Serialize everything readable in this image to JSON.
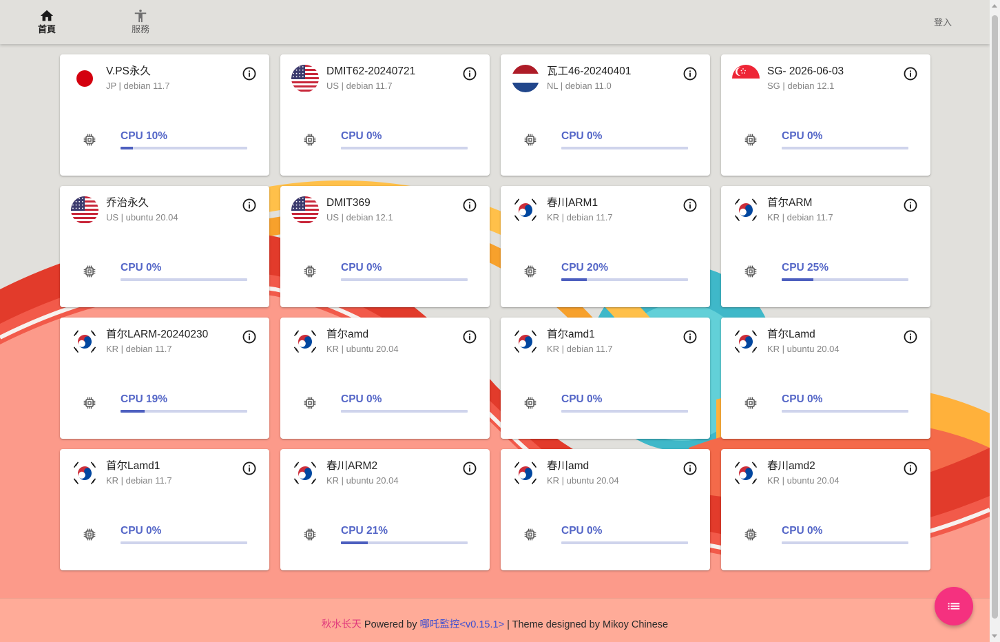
{
  "nav": {
    "home_label": "首頁",
    "services_label": "服務",
    "login_label": "登入"
  },
  "servers": [
    {
      "name": "V.PS永久",
      "country": "JP",
      "os": "debian 11.7",
      "flag": "jp-flag-icon",
      "cpu": 10
    },
    {
      "name": "DMIT62-20240721",
      "country": "US",
      "os": "debian 11.7",
      "flag": "us-flag-icon",
      "cpu": 0
    },
    {
      "name": "瓦工46-20240401",
      "country": "NL",
      "os": "debian 11.0",
      "flag": "nl-flag-icon",
      "cpu": 0
    },
    {
      "name": "SG- 2026-06-03",
      "country": "SG",
      "os": "debian 12.1",
      "flag": "sg-flag-icon",
      "cpu": 0
    },
    {
      "name": "乔治永久",
      "country": "US",
      "os": "ubuntu 20.04",
      "flag": "us-flag-icon",
      "cpu": 0
    },
    {
      "name": "DMIT369",
      "country": "US",
      "os": "debian 12.1",
      "flag": "us-flag-icon",
      "cpu": 0
    },
    {
      "name": "春川ARM1",
      "country": "KR",
      "os": "debian 11.7",
      "flag": "kr-flag-icon",
      "cpu": 20
    },
    {
      "name": "首尔ARM",
      "country": "KR",
      "os": "debian 11.7",
      "flag": "kr-flag-icon",
      "cpu": 25
    },
    {
      "name": "首尔LARM-20240230",
      "country": "KR",
      "os": "debian 11.7",
      "flag": "kr-flag-icon",
      "cpu": 19
    },
    {
      "name": "首尔amd",
      "country": "KR",
      "os": "ubuntu 20.04",
      "flag": "kr-flag-icon",
      "cpu": 0
    },
    {
      "name": "首尔amd1",
      "country": "KR",
      "os": "debian 11.7",
      "flag": "kr-flag-icon",
      "cpu": 0
    },
    {
      "name": "首尔Lamd",
      "country": "KR",
      "os": "ubuntu 20.04",
      "flag": "kr-flag-icon",
      "cpu": 0
    },
    {
      "name": "首尔Lamd1",
      "country": "KR",
      "os": "debian 11.7",
      "flag": "kr-flag-icon",
      "cpu": 0
    },
    {
      "name": "春川ARM2",
      "country": "KR",
      "os": "ubuntu 20.04",
      "flag": "kr-flag-icon",
      "cpu": 21
    },
    {
      "name": "春川amd",
      "country": "KR",
      "os": "ubuntu 20.04",
      "flag": "kr-flag-icon",
      "cpu": 0
    },
    {
      "name": "春川amd2",
      "country": "KR",
      "os": "ubuntu 20.04",
      "flag": "kr-flag-icon",
      "cpu": 0
    }
  ],
  "cpu_prefix": "CPU",
  "footer": {
    "site_name": "秋水长天",
    "powered_by": " Powered by ",
    "project_link": "哪吒監控<v0.15.1>",
    "theme_text": " | Theme designed by Mikoy Chinese"
  },
  "icons": {
    "home": "home-icon",
    "services": "accessibility-icon",
    "info": "info-icon",
    "cpu": "cpu-chip-icon",
    "fab": "list-icon"
  },
  "colors": {
    "accent": "#5466c7",
    "progress_fill": "#4d5fbf",
    "progress_track": "#cfd4ec",
    "fab": "#f5317f",
    "footer_site": "#e03a7c",
    "footer_link": "#3e4fd0"
  }
}
